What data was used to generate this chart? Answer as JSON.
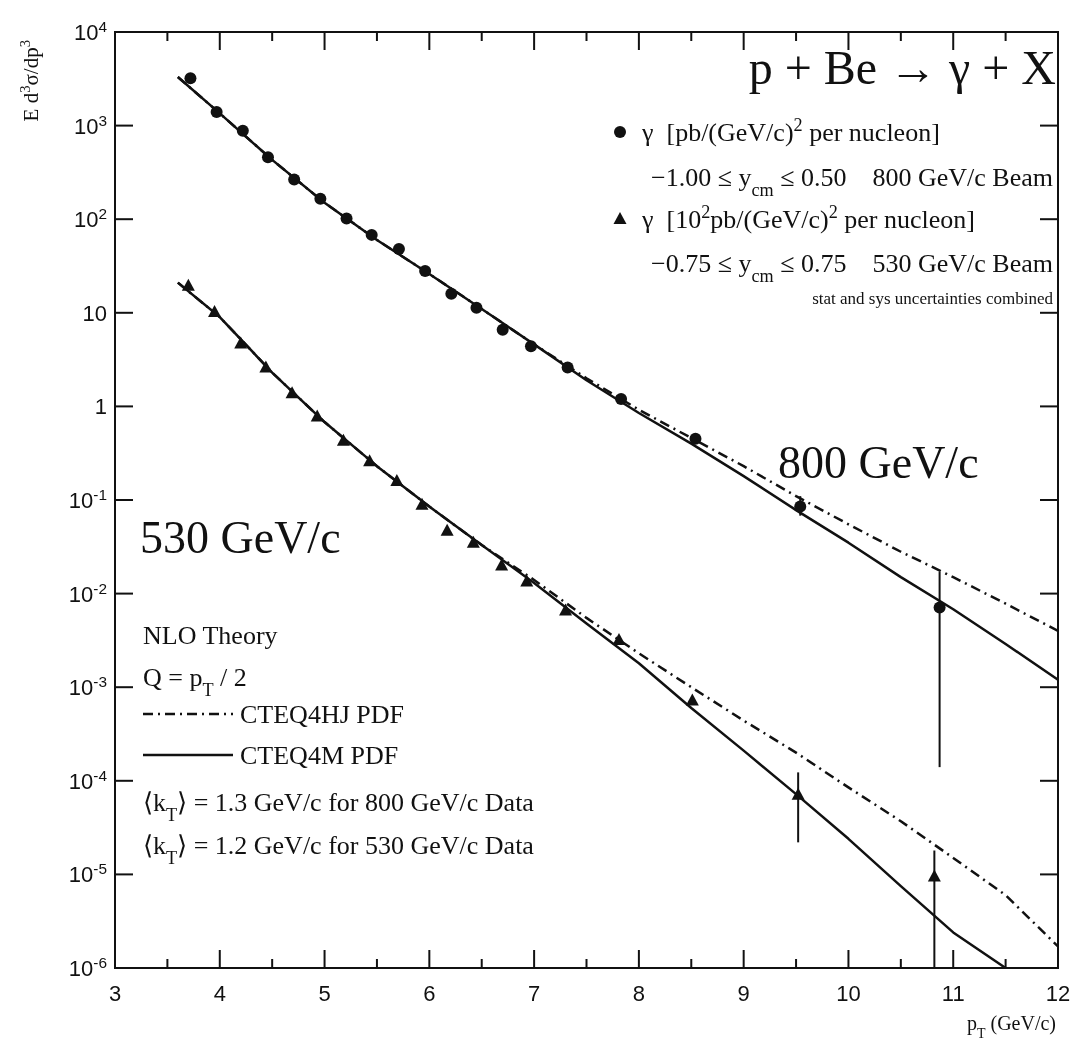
{
  "chart_data": {
    "type": "scatter",
    "title": "p + Be → γ + X",
    "xlabel": "p$_{T}$ (GeV/c)",
    "ylabel": "E d$^{3}$σ/dp$^{3}$",
    "log": "y",
    "xlim": [
      3,
      12
    ],
    "ylim": [
      1e-06,
      10000
    ],
    "xticks": [
      3,
      {
        "value": 3.5,
        "label": null
      },
      4,
      {
        "value": 4.5,
        "label": null
      },
      5,
      {
        "value": 5.5,
        "label": null
      },
      6,
      {
        "value": 6.5,
        "label": null
      },
      7,
      {
        "value": 7.5,
        "label": null
      },
      8,
      {
        "value": 8.5,
        "label": null
      },
      9,
      {
        "value": 9.5,
        "label": null
      },
      10,
      {
        "value": 10.5,
        "label": null
      },
      11,
      {
        "value": 11.5,
        "label": null
      },
      12
    ],
    "yticks": [
      {
        "value": 10000,
        "label": "10$^{4}$"
      },
      {
        "value": 1000,
        "label": "10$^{3}$"
      },
      {
        "value": 100,
        "label": "10$^{2}$"
      },
      10,
      1,
      {
        "value": 0.1,
        "label": "10$^{-1}$"
      },
      {
        "value": 0.01,
        "label": "10$^{-2}$"
      },
      {
        "value": 0.001,
        "label": "10$^{-3}$"
      },
      {
        "value": 0.0001,
        "label": "10$^{-4}$"
      },
      {
        "value": 1e-05,
        "label": "10$^{-5}$"
      },
      {
        "value": 1e-06,
        "label": "10$^{-6}$"
      }
    ],
    "grid": false,
    "legend": "top right",
    "series": [
      {
        "name": "γ  [pb/(GeV/c)$^{2}$ per nucleon]",
        "marker": "circle",
        "color": "#111111",
        "x": [
          3.72,
          3.97,
          4.22,
          4.46,
          4.71,
          4.96,
          5.21,
          5.45,
          5.71,
          5.96,
          6.21,
          6.45,
          6.7,
          6.97,
          7.32,
          7.83,
          8.54,
          9.54,
          10.87
        ],
        "values": [
          3200,
          1400,
          880,
          460,
          265,
          165,
          102,
          68,
          48,
          28,
          16,
          11.3,
          6.6,
          4.4,
          2.6,
          1.2,
          0.45,
          0.085,
          0.0071
        ],
        "errors": [
          null,
          null,
          null,
          null,
          null,
          null,
          null,
          null,
          null,
          null,
          null,
          null,
          null,
          null,
          null,
          null,
          null,
          [
            0.068,
            0.11
          ],
          [
            0.00014,
            0.017
          ]
        ]
      },
      {
        "name": "γ  [10$^{2}$pb/(GeV/c)$^{2}$ per nucleon]",
        "marker": "triangle",
        "color": "#111111",
        "x": [
          3.7,
          3.95,
          4.2,
          4.44,
          4.69,
          4.93,
          5.18,
          5.43,
          5.69,
          5.93,
          6.17,
          6.42,
          6.69,
          6.93,
          7.3,
          7.81,
          8.51,
          9.52,
          10.82
        ],
        "values": [
          19.5,
          10.2,
          4.7,
          2.6,
          1.38,
          0.78,
          0.43,
          0.26,
          0.16,
          0.089,
          0.047,
          0.035,
          0.02,
          0.0135,
          0.0066,
          0.0032,
          0.00072,
          7.1e-05,
          9.5e-06
        ],
        "errors": [
          null,
          null,
          null,
          null,
          null,
          null,
          null,
          null,
          null,
          null,
          null,
          null,
          null,
          null,
          null,
          null,
          null,
          [
            2.2e-05,
            0.000123
          ],
          [
            1e-06,
            1.8e-05
          ]
        ]
      },
      {
        "name": "CTEQ4HJ PDF",
        "type": "line",
        "line_style": "dashed",
        "color": "#111111",
        "x": [
          3.6,
          4,
          4.5,
          5,
          5.5,
          6,
          6.5,
          7,
          7.5,
          8,
          8.5,
          9,
          9.5,
          10,
          10.5,
          11,
          11.5,
          12
        ],
        "values": [
          3300,
          1350,
          430,
          150,
          60,
          26,
          11,
          4.6,
          2.0,
          0.92,
          0.46,
          0.23,
          0.11,
          0.055,
          0.028,
          0.015,
          0.0078,
          0.004
        ]
      },
      {
        "name": "CTEQ4M PDF",
        "type": "line",
        "line_style": "solid",
        "color": "#111111",
        "x": [
          3.6,
          4,
          4.5,
          5,
          5.5,
          6,
          6.5,
          7,
          7.5,
          8,
          8.5,
          9,
          9.5,
          10,
          10.5,
          11,
          11.5,
          12
        ],
        "values": [
          3300,
          1350,
          430,
          150,
          60,
          26,
          11,
          4.6,
          1.9,
          0.85,
          0.4,
          0.18,
          0.078,
          0.035,
          0.015,
          0.0068,
          0.0029,
          0.0012
        ]
      },
      {
        "type": "line",
        "line_style": "dashed",
        "color": "#111111",
        "x": [
          3.6,
          4,
          4.5,
          5,
          5.5,
          6,
          6.5,
          7,
          7.5,
          8,
          8.5,
          9,
          9.5,
          10,
          10.5,
          11,
          11.5,
          12
        ],
        "values": [
          21,
          9.0,
          2.3,
          0.68,
          0.23,
          0.085,
          0.033,
          0.014,
          0.0055,
          0.0023,
          0.001,
          0.00044,
          0.0002,
          8.5e-05,
          3.7e-05,
          1.5e-05,
          6e-06,
          1.7e-06
        ]
      },
      {
        "type": "line",
        "line_style": "solid",
        "color": "#111111",
        "x": [
          3.6,
          4,
          4.5,
          5,
          5.5,
          6,
          6.5,
          7,
          7.5,
          8,
          8.5,
          9,
          9.5,
          10,
          10.5,
          11,
          11.5
        ],
        "values": [
          21,
          9.0,
          2.3,
          0.68,
          0.23,
          0.085,
          0.033,
          0.013,
          0.0048,
          0.0018,
          0.0006,
          0.00021,
          7.2e-05,
          2.4e-05,
          7.5e-06,
          2.4e-06,
          1e-06
        ]
      }
    ],
    "annotations": [
      "−1.00 ≤ y$_{cm}$ ≤ 0.50    800 GeV/c Beam",
      "−0.75 ≤ y$_{cm}$ ≤ 0.75    530 GeV/c Beam",
      "stat and sys uncertainties combined",
      "800 GeV/c",
      "530 GeV/c",
      "NLO Theory",
      "Q = p$_{T}$ / 2",
      "⟨k$_{T}$⟩ = 1.3 GeV/c for 800 GeV/c Data",
      "⟨k$_{T}$⟩ = 1.2 GeV/c for 530 GeV/c Data"
    ]
  }
}
